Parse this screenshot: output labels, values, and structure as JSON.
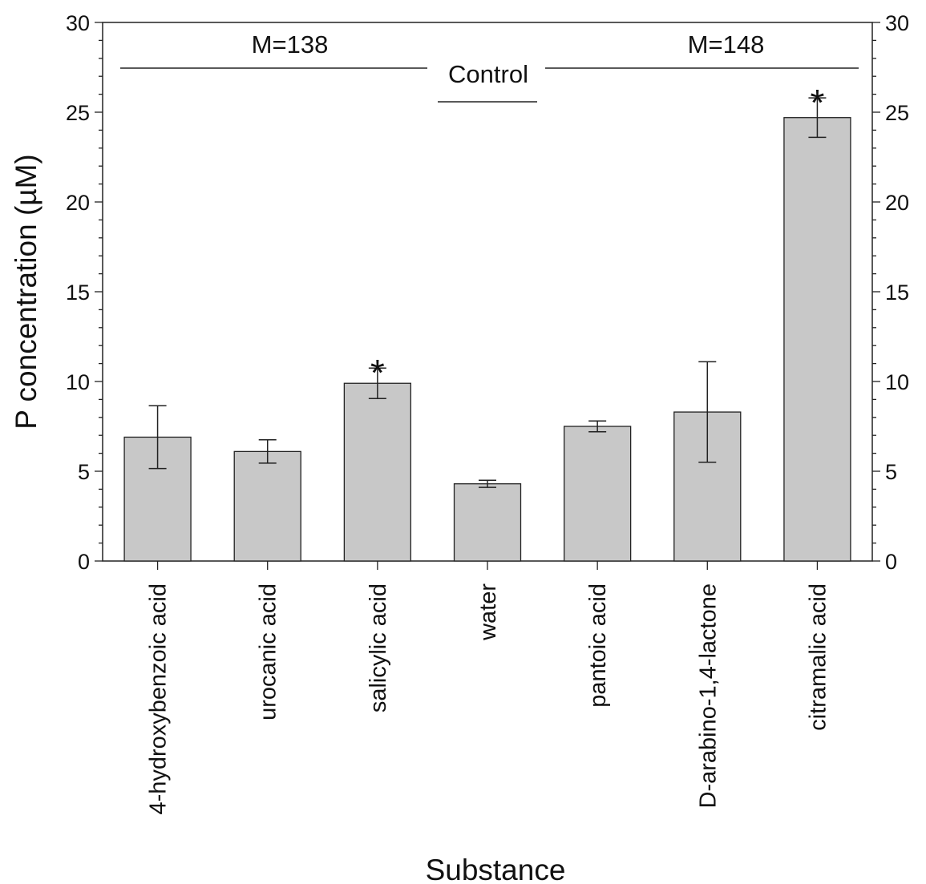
{
  "chart_data": {
    "type": "bar",
    "xlabel": "Substance",
    "ylabel": "P concentration (µM)",
    "ylim": [
      0,
      30
    ],
    "yticks": [
      "0",
      "5",
      "10",
      "15",
      "20",
      "25",
      "30"
    ],
    "categories": [
      "4-hydroxybenzoic acid",
      "urocanic acid",
      "salicylic acid",
      "water",
      "pantoic acid",
      "D-arabino-1,4-lactone",
      "citramalic acid"
    ],
    "values": [
      6.9,
      6.1,
      9.9,
      4.3,
      7.5,
      8.3,
      24.7
    ],
    "errors": [
      1.75,
      0.65,
      0.85,
      0.2,
      0.3,
      2.8,
      1.1
    ],
    "significant": [
      false,
      false,
      true,
      false,
      false,
      false,
      true
    ],
    "significance_marker": "*",
    "bar_color": "#c8c8c8",
    "groups": [
      {
        "label": "M=138",
        "categories": [
          0,
          2
        ]
      },
      {
        "label": "Control",
        "categories": [
          3,
          3
        ]
      },
      {
        "label": "M=148",
        "categories": [
          4,
          6
        ]
      }
    ],
    "grid": false,
    "legend": "none"
  }
}
